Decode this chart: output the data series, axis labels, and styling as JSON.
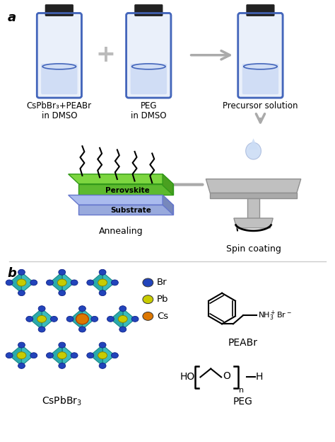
{
  "title_a": "a",
  "title_b": "b",
  "bg_color": "#ffffff",
  "label1_line1": "CsPbBr₃+PEABr",
  "label1_line2": "in DMSO",
  "label2_line1": "PEG",
  "label2_line2": "in DMSO",
  "label3": "Precursor solution",
  "label4": "Annealing",
  "label5": "Spin coating",
  "label6": "CsPbBr₃",
  "label7": "PEABr",
  "label8": "PEG",
  "legend_br": "Br",
  "legend_pb": "Pb",
  "legend_cs": "Cs",
  "vial_body_color": "#eaf0fa",
  "vial_outline": "#4466bb",
  "vial_cap_color": "#222222",
  "vial_liquid": "#d0ddf5",
  "vial_liquid_line": "#4466bb",
  "green_pero": "#5dba2f",
  "green_pero_top": "#7dd640",
  "green_pero_side": "#4aa020",
  "blue_sub": "#99aadd",
  "blue_sub_top": "#aabbee",
  "blue_sub_side": "#7788bb",
  "arrow_color": "#aaaaaa",
  "plus_color": "#bbbbbb",
  "br_color": "#2244bb",
  "pb_color": "#c8cc00",
  "cs_color": "#dd7700",
  "teal_light": "#3bbcbc",
  "teal_mid": "#2aabab",
  "teal_dark": "#1a8888",
  "perovskite_text": "Perovskite",
  "substrate_text": "Substrate",
  "spin_color": "#c0c0c0",
  "spin_dark": "#909090"
}
